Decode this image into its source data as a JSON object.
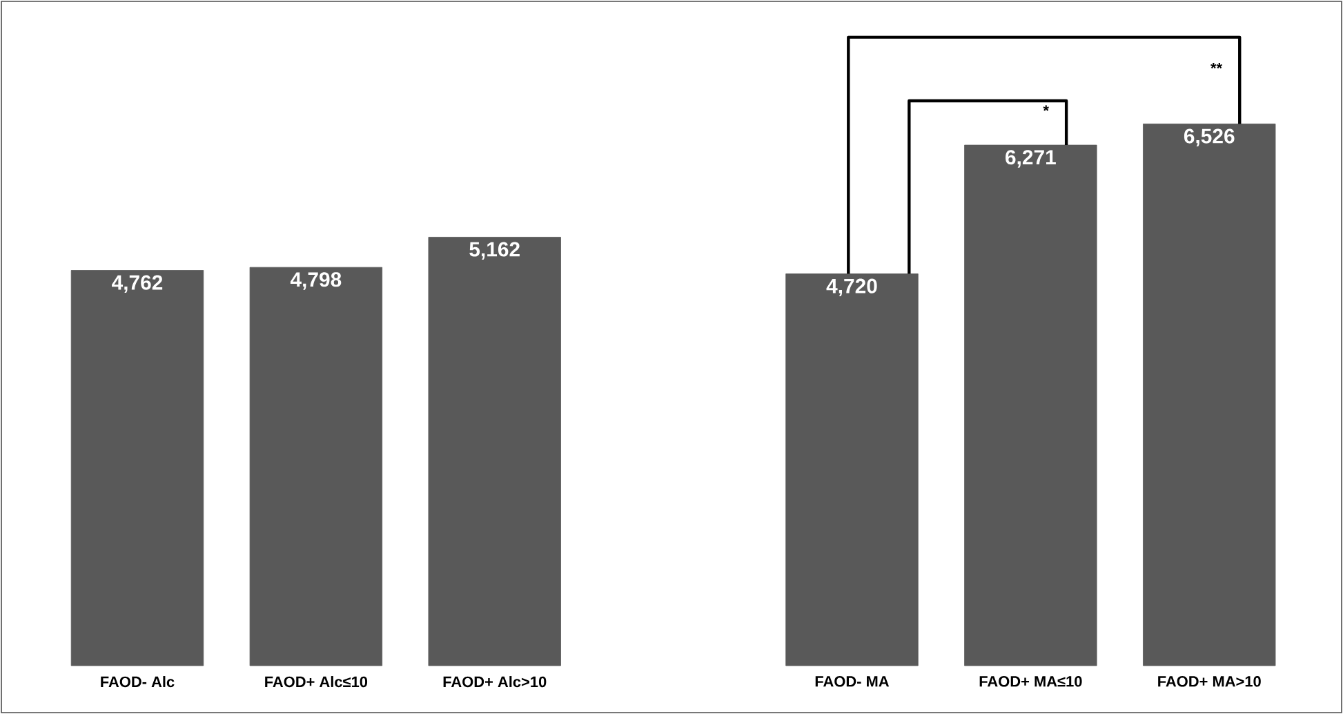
{
  "chart_data": {
    "type": "bar",
    "categories": [
      "FAOD- Alc",
      "FAOD+ Alc≤10",
      "FAOD+ Alc>10",
      null,
      "FAOD- MA",
      "FAOD+ MA≤10",
      "FAOD+ MA>10"
    ],
    "values": [
      4762,
      4798,
      5162,
      null,
      4720,
      6271,
      6526
    ],
    "value_labels": [
      "4,762",
      "4,798",
      "5,162",
      null,
      "4,720",
      "6,271",
      "6,526"
    ],
    "color": "#595959",
    "annotations": [
      "*",
      "**"
    ]
  }
}
